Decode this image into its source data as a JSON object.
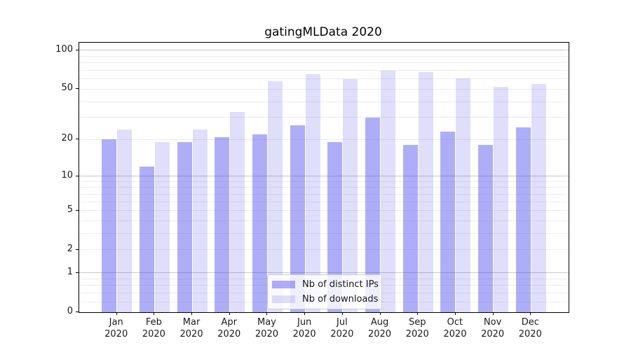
{
  "chart_data": {
    "type": "bar",
    "title": "gatingMLData 2020",
    "categories": [
      "Jan",
      "Feb",
      "Mar",
      "Apr",
      "May",
      "Jun",
      "Jul",
      "Aug",
      "Sep",
      "Oct",
      "Nov",
      "Dec"
    ],
    "category_year": "2020",
    "series": [
      {
        "name": "Nb of distinct IPs",
        "color": "rgba(75, 75, 240, 0.45)",
        "values": [
          20,
          12,
          19,
          21,
          22,
          26,
          19,
          30,
          18,
          23,
          18,
          25
        ]
      },
      {
        "name": "Nb of downloads",
        "color": "rgba(75, 75, 240, 0.18)",
        "values": [
          24,
          19,
          24,
          33,
          58,
          65,
          60,
          70,
          68,
          61,
          52,
          55
        ]
      }
    ],
    "yscale": "log1p",
    "ylim": [
      0,
      115
    ],
    "y_ticks": [
      0,
      1,
      2,
      5,
      10,
      20,
      50,
      100
    ],
    "y_major_gridlines": [
      1,
      10,
      100
    ],
    "y_minor_gridlines": [
      0.2,
      0.4,
      0.6,
      0.8,
      2,
      3,
      4,
      5,
      6,
      7,
      8,
      9,
      20,
      30,
      40,
      50,
      60,
      70,
      80,
      90
    ],
    "grid": true,
    "legend_position": "lower center"
  },
  "style": {
    "bar_series_colors": [
      "rgba(75, 75, 240, 0.45)",
      "rgba(75, 75, 240, 0.18)"
    ],
    "major_grid_color": "#c8c8c8",
    "minor_grid_color": "#ececec",
    "axis_color": "#000000",
    "text_color": "#1a1a1a",
    "legend_border_color": "#cccccc",
    "legend_background": "rgba(255, 255, 255, 0.8)",
    "figure_background": "#ffffff"
  }
}
